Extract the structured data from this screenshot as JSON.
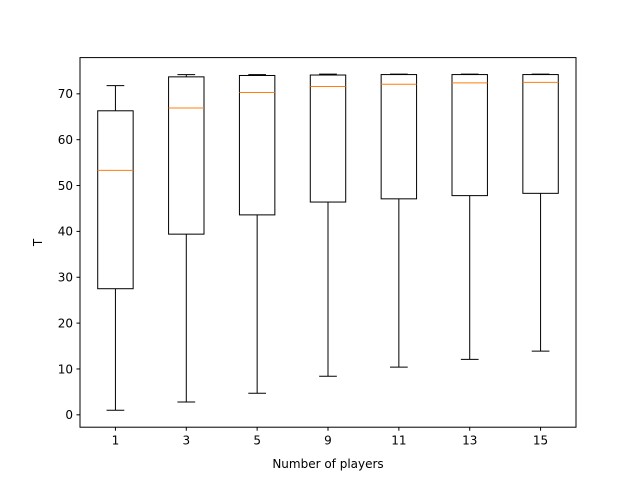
{
  "chart_data": {
    "type": "box",
    "title": "",
    "xlabel": "Number of players",
    "ylabel": "T",
    "categories": [
      "1",
      "3",
      "5",
      "9",
      "11",
      "13",
      "15"
    ],
    "boxes": [
      {
        "category": "1",
        "whisker_low": 1.0,
        "q1": 27.5,
        "median": 53.3,
        "q3": 66.3,
        "whisker_high": 71.8
      },
      {
        "category": "3",
        "whisker_low": 2.8,
        "q1": 39.4,
        "median": 66.9,
        "q3": 73.7,
        "whisker_high": 74.2
      },
      {
        "category": "5",
        "whisker_low": 4.7,
        "q1": 43.6,
        "median": 70.3,
        "q3": 74.0,
        "whisker_high": 74.2
      },
      {
        "category": "9",
        "whisker_low": 8.4,
        "q1": 46.4,
        "median": 71.6,
        "q3": 74.1,
        "whisker_high": 74.3
      },
      {
        "category": "11",
        "whisker_low": 10.4,
        "q1": 47.1,
        "median": 72.1,
        "q3": 74.2,
        "whisker_high": 74.3
      },
      {
        "category": "13",
        "whisker_low": 12.1,
        "q1": 47.8,
        "median": 72.4,
        "q3": 74.2,
        "whisker_high": 74.3
      },
      {
        "category": "15",
        "whisker_low": 13.9,
        "q1": 48.3,
        "median": 72.5,
        "q3": 74.2,
        "whisker_high": 74.3
      }
    ],
    "ylim": [
      -2.7,
      77.9
    ],
    "yticks": [
      0,
      10,
      20,
      30,
      40,
      50,
      60,
      70
    ],
    "grid": false,
    "colors": {
      "box": "#000000",
      "median": "#ff7f0e"
    }
  }
}
